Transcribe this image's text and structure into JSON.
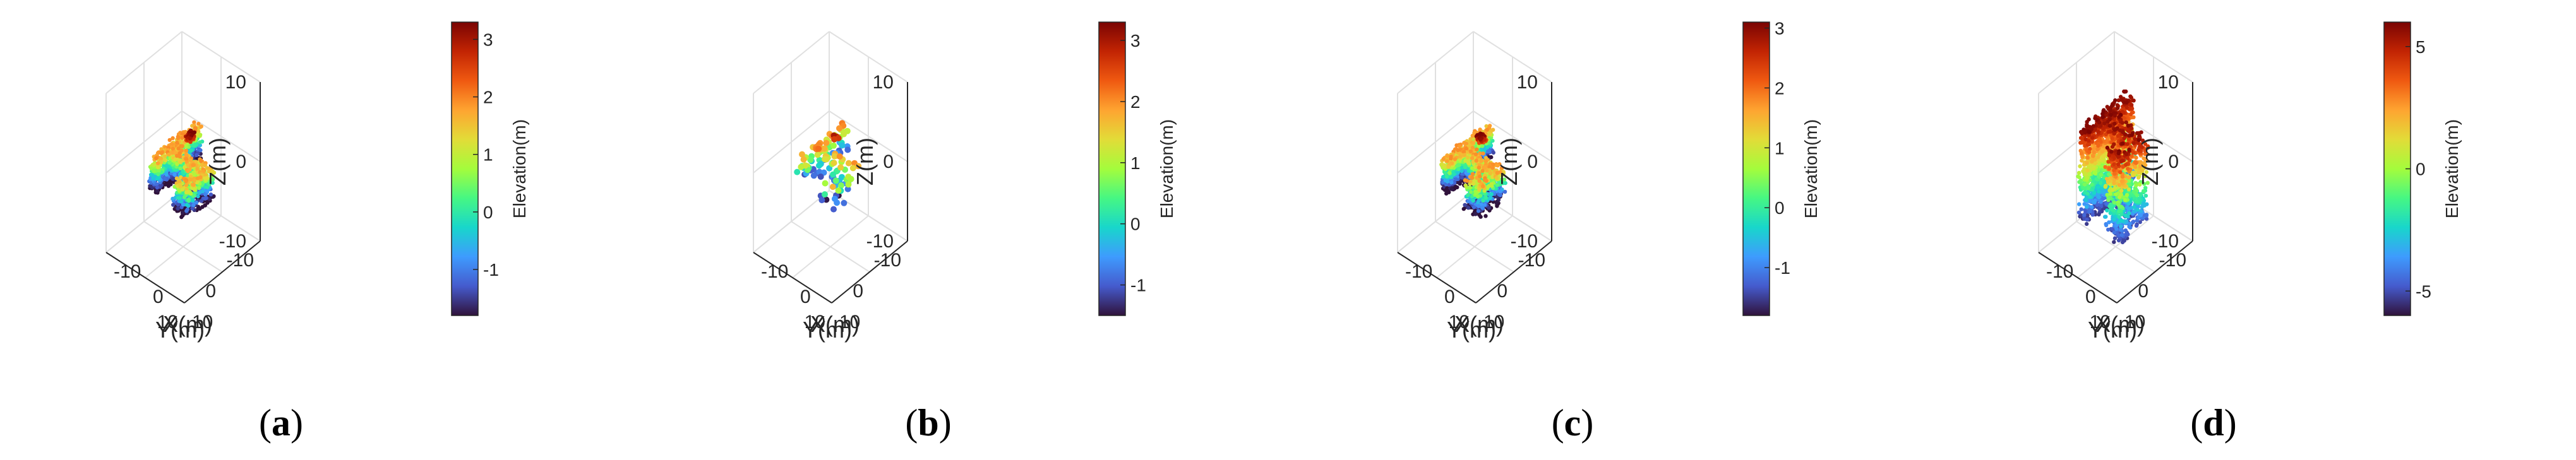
{
  "chart_data": [
    {
      "type": "scatter",
      "subtype": "scatter3d",
      "caption": "a",
      "xlabel": "X(m)",
      "ylabel": "Y(m)",
      "zlabel": "Z(m)",
      "xticks": [
        "-10",
        "0",
        "10"
      ],
      "yticks": [
        "-10",
        "0",
        "10"
      ],
      "zticks": [
        "-10",
        "0",
        "10"
      ],
      "xlim": [
        -10,
        10
      ],
      "ylim": [
        -10,
        10
      ],
      "zlim": [
        -10,
        10
      ],
      "grid": true,
      "colorbar": {
        "label": "Elevation(m)",
        "ticks": [
          "-1",
          "0",
          "1",
          "2",
          "3"
        ],
        "range": [
          -1.8,
          3.3
        ],
        "colormap": "turbo"
      },
      "density": "dense",
      "shape": "branch",
      "zrange": [
        -2.8,
        3.3
      ],
      "seed": 11
    },
    {
      "type": "scatter",
      "subtype": "scatter3d",
      "caption": "b",
      "xlabel": "X(m)",
      "ylabel": "Y(m)",
      "zlabel": "Z(m)",
      "xticks": [
        "-10",
        "0",
        "10"
      ],
      "yticks": [
        "-10",
        "0",
        "10"
      ],
      "zticks": [
        "-10",
        "0",
        "10"
      ],
      "xlim": [
        -10,
        10
      ],
      "ylim": [
        -10,
        10
      ],
      "zlim": [
        -10,
        10
      ],
      "grid": true,
      "colorbar": {
        "label": "Elevation(m)",
        "ticks": [
          "-1",
          "0",
          "1",
          "2",
          "3"
        ],
        "range": [
          -1.5,
          3.3
        ],
        "colormap": "turbo"
      },
      "density": "sparse",
      "shape": "branch",
      "zrange": [
        -1.5,
        3.3
      ],
      "seed": 23
    },
    {
      "type": "scatter",
      "subtype": "scatter3d",
      "caption": "c",
      "xlabel": "X(m)",
      "ylabel": "Y(m)",
      "zlabel": "Z(m)",
      "xticks": [
        "-10",
        "0",
        "10"
      ],
      "yticks": [
        "-10",
        "0",
        "10"
      ],
      "zticks": [
        "-10",
        "0",
        "10"
      ],
      "xlim": [
        -10,
        10
      ],
      "ylim": [
        -10,
        10
      ],
      "zlim": [
        -10,
        10
      ],
      "grid": true,
      "colorbar": {
        "label": "Elevation(m)",
        "ticks": [
          "-1",
          "0",
          "1",
          "2",
          "3"
        ],
        "range": [
          -1.8,
          3.1
        ],
        "colormap": "turbo"
      },
      "density": "dense",
      "shape": "branch",
      "zrange": [
        -2.8,
        3.1
      ],
      "seed": 37
    },
    {
      "type": "scatter",
      "subtype": "scatter3d",
      "caption": "d",
      "xlabel": "X(m)",
      "ylabel": "Y(m)",
      "zlabel": "Z(m)",
      "xticks": [
        "-10",
        "0",
        "10"
      ],
      "yticks": [
        "-10",
        "0",
        "10"
      ],
      "zticks": [
        "-10",
        "0",
        "10"
      ],
      "xlim": [
        -10,
        10
      ],
      "ylim": [
        -10,
        10
      ],
      "zlim": [
        -10,
        10
      ],
      "grid": true,
      "colorbar": {
        "label": "Elevation(m)",
        "ticks": [
          "-5",
          "0",
          "5"
        ],
        "range": [
          -6,
          6
        ],
        "colormap": "turbo"
      },
      "density": "dense",
      "shape": "wall",
      "zrange": [
        -5.5,
        6
      ],
      "seed": 53
    }
  ]
}
